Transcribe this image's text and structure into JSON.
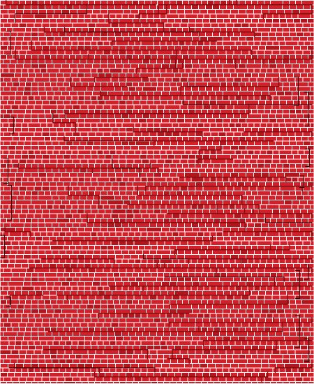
{
  "colors": {
    "background": "#ffffff",
    "tile": "#d0202a",
    "tile_dark": "#b3151d",
    "tile_border": "#f4d6d6",
    "trace": "#7a0d10",
    "trace_black": "#1a0000"
  }
}
